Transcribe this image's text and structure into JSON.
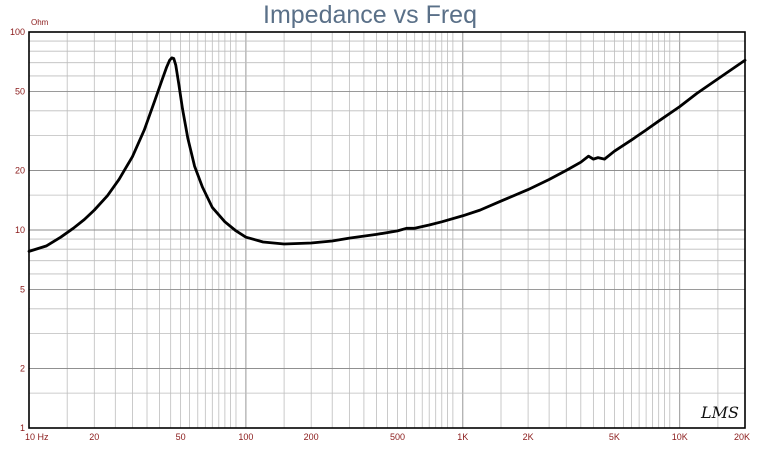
{
  "chart_data": {
    "type": "line",
    "title": "Impedance vs Freq",
    "ylabel": "Ohm",
    "xlabel": "",
    "xscale": "log",
    "yscale": "log",
    "xlim": [
      10,
      20000
    ],
    "ylim": [
      1,
      100
    ],
    "grid": true,
    "x_tick_labels": [
      {
        "value": 10,
        "label": "10 Hz"
      },
      {
        "value": 20,
        "label": "20"
      },
      {
        "value": 50,
        "label": "50"
      },
      {
        "value": 100,
        "label": "100"
      },
      {
        "value": 200,
        "label": "200"
      },
      {
        "value": 500,
        "label": "500"
      },
      {
        "value": 1000,
        "label": "1K"
      },
      {
        "value": 2000,
        "label": "2K"
      },
      {
        "value": 5000,
        "label": "5K"
      },
      {
        "value": 10000,
        "label": "10K"
      },
      {
        "value": 20000,
        "label": "20K"
      }
    ],
    "y_tick_labels": [
      {
        "value": 1,
        "label": "1"
      },
      {
        "value": 2,
        "label": "2"
      },
      {
        "value": 5,
        "label": "5"
      },
      {
        "value": 10,
        "label": "10"
      },
      {
        "value": 20,
        "label": "20"
      },
      {
        "value": 50,
        "label": "50"
      },
      {
        "value": 100,
        "label": "100"
      }
    ],
    "series": [
      {
        "color": "#000000",
        "x": [
          10,
          12,
          14,
          16,
          18,
          20,
          23,
          26,
          30,
          34,
          38,
          41,
          43,
          44.5,
          45.5,
          46.5,
          47.5,
          49,
          51,
          54,
          58,
          63,
          70,
          80,
          90,
          100,
          120,
          150,
          200,
          250,
          300,
          400,
          500,
          550,
          600,
          700,
          800,
          1000,
          1200,
          1500,
          2000,
          2500,
          3000,
          3500,
          3800,
          4000,
          4200,
          4500,
          5000,
          6000,
          7000,
          8000,
          10000,
          12000,
          15000,
          20000
        ],
        "values": [
          7.8,
          8.3,
          9.2,
          10.2,
          11.3,
          12.6,
          14.9,
          18.0,
          23.5,
          32.0,
          45.0,
          57.0,
          66.0,
          72.0,
          74.0,
          73.5,
          68.0,
          55.0,
          41.0,
          29.0,
          21.0,
          16.5,
          13.0,
          11.0,
          9.9,
          9.2,
          8.7,
          8.5,
          8.6,
          8.8,
          9.1,
          9.5,
          9.9,
          10.2,
          10.2,
          10.6,
          11.0,
          11.8,
          12.6,
          14.0,
          16.0,
          18.0,
          20.0,
          22.0,
          23.6,
          22.8,
          23.2,
          22.8,
          25.0,
          28.5,
          32.0,
          35.5,
          42.0,
          49.0,
          58.0,
          72.0
        ]
      }
    ]
  },
  "logo_text": "LMS"
}
